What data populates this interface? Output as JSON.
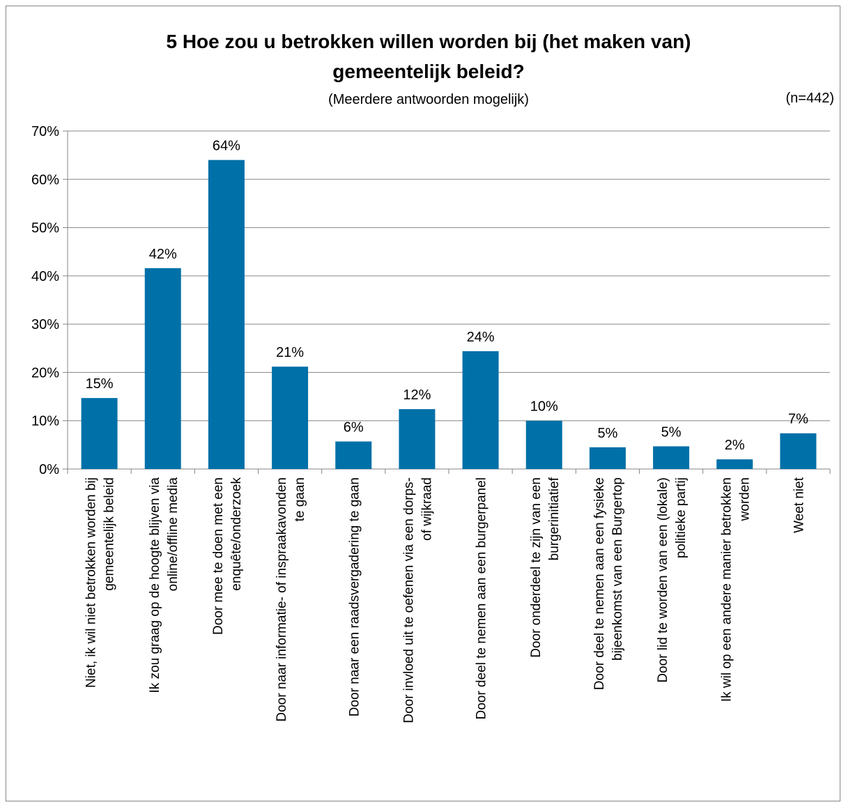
{
  "chart_data": {
    "type": "bar",
    "title_lines": [
      "5 Hoe zou u betrokken willen worden bij (het maken van)",
      "gemeentelijk beleid?"
    ],
    "subtitle": "(Meerdere antwoorden mogelijk)",
    "note": "(n=442)",
    "ylim": [
      0,
      70
    ],
    "yticks": [
      "0%",
      "10%",
      "20%",
      "30%",
      "40%",
      "50%",
      "60%",
      "70%"
    ],
    "grid": true,
    "bar_color": "#0070A8",
    "categories": [
      [
        "Niet, ik wil niet betrokken worden bij",
        "gemeentelijk beleid"
      ],
      [
        "Ik zou graag op de hoogte blijven via",
        "online/offline media"
      ],
      [
        "Door mee te doen met een",
        "enquête/onderzoek"
      ],
      [
        "Door naar informatie- of inspraakavonden",
        "te gaan"
      ],
      [
        "Door naar een raadsvergadering te gaan"
      ],
      [
        "Door invloed uit te oefenen via een dorps-",
        "of wijkraad"
      ],
      [
        "Door deel te nemen aan een burgerpanel"
      ],
      [
        "Door onderdeel te zijn van een",
        "burgerinitiatief"
      ],
      [
        "Door deel te nemen aan een fysieke",
        "bijeenkomst van een Burgertop"
      ],
      [
        "Door lid te worden van een (lokale)",
        "politieke partij"
      ],
      [
        "Ik wil op een andere manier betrokken",
        "worden"
      ],
      [
        "Weet niet"
      ]
    ],
    "values": [
      14.7,
      41.6,
      64.0,
      21.2,
      5.7,
      12.4,
      24.4,
      10.0,
      4.5,
      4.7,
      2.0,
      7.4
    ],
    "data_labels": [
      "15%",
      "42%",
      "64%",
      "21%",
      "6%",
      "12%",
      "24%",
      "10%",
      "5%",
      "5%",
      "2%",
      "7%"
    ]
  }
}
